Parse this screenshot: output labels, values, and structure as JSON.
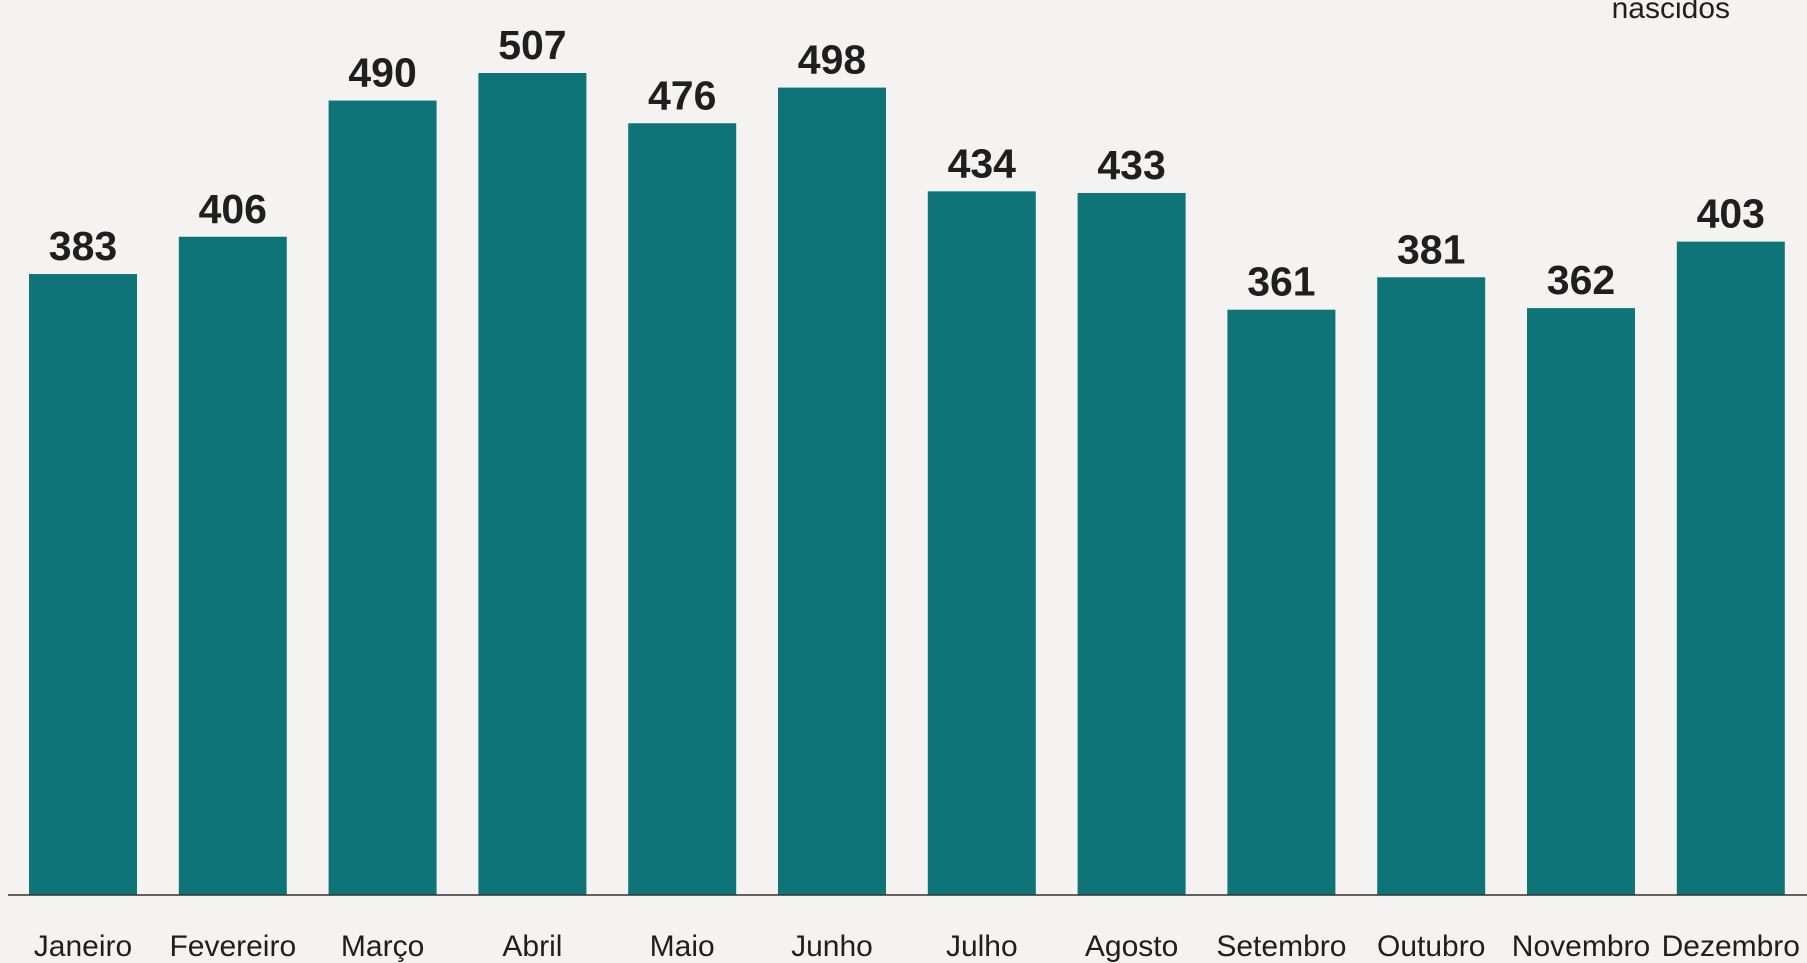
{
  "legend_label": "nascidos",
  "chart_data": {
    "type": "bar",
    "title": "",
    "xlabel": "",
    "ylabel": "",
    "categories": [
      "Janeiro",
      "Fevereiro",
      "Março",
      "Abril",
      "Maio",
      "Junho",
      "Julho",
      "Agosto",
      "Setembro",
      "Outubro",
      "Novembro",
      "Dezembro"
    ],
    "values": [
      383,
      406,
      490,
      507,
      476,
      498,
      434,
      433,
      361,
      381,
      362,
      403
    ],
    "ylim": [
      0,
      550
    ],
    "grid": false,
    "legend": "top-right",
    "colors": {
      "bar": "#0e7478",
      "axis": "#333333",
      "text": "#1f1f1f",
      "background": "#f4f3f1"
    }
  }
}
